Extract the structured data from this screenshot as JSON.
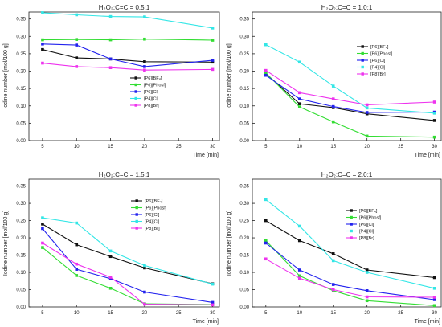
{
  "chart_data": [
    {
      "type": "line",
      "title": "H₂O₂:C=C = 0.5:1",
      "xlabel": "Time [min]",
      "ylabel": "Iodine number [mol/100 g]",
      "x": [
        5,
        10,
        15,
        20,
        30
      ],
      "xlim": [
        3,
        31
      ],
      "ylim": [
        0,
        0.37
      ],
      "xticks": [
        5,
        10,
        15,
        20,
        25,
        30
      ],
      "yticks": [
        "0.00",
        "0.05",
        "0.10",
        "0.15",
        "0.20",
        "0.25",
        "0.30",
        "0.35"
      ],
      "legend_position": "center-right",
      "series": [
        {
          "name": "[P6][BF₄]",
          "color": "#111111",
          "marker": "square",
          "values": [
            0.262,
            0.238,
            0.235,
            0.227,
            0.226
          ]
        },
        {
          "name": "[P6][Phosf]",
          "color": "#33dd33",
          "marker": "square",
          "values": [
            0.29,
            0.291,
            0.29,
            0.292,
            0.289
          ]
        },
        {
          "name": "[P6][Cl]",
          "color": "#2222ee",
          "marker": "square",
          "values": [
            0.278,
            0.275,
            0.235,
            0.213,
            0.231
          ]
        },
        {
          "name": "[P4][Cl]",
          "color": "#33e6e6",
          "marker": "square",
          "values": [
            0.368,
            0.362,
            0.357,
            0.356,
            0.324
          ]
        },
        {
          "name": "[P8][Br]",
          "color": "#ee33ee",
          "marker": "square",
          "values": [
            0.223,
            0.213,
            0.21,
            0.203,
            0.205
          ]
        }
      ]
    },
    {
      "type": "line",
      "title": "H₂O₂:C=C = 1.0:1",
      "xlabel": "Time [min]",
      "ylabel": "Iodine number [mol/100 g]",
      "x": [
        5,
        10,
        15,
        20,
        30
      ],
      "xlim": [
        3,
        31
      ],
      "ylim": [
        0,
        0.37
      ],
      "xticks": [
        5,
        10,
        15,
        20,
        25,
        30
      ],
      "yticks": [
        "0.00",
        "0.05",
        "0.10",
        "0.15",
        "0.20",
        "0.25",
        "0.30",
        "0.35"
      ],
      "legend_position": "top-right",
      "series": [
        {
          "name": "[P6][BF₄]",
          "color": "#111111",
          "marker": "square",
          "values": [
            0.193,
            0.106,
            0.095,
            0.077,
            0.058
          ]
        },
        {
          "name": "[P6][Phosf]",
          "color": "#33dd33",
          "marker": "square",
          "values": [
            0.195,
            0.097,
            0.054,
            0.013,
            0.01
          ]
        },
        {
          "name": "[P6][Cl]",
          "color": "#2222ee",
          "marker": "square",
          "values": [
            0.188,
            0.12,
            0.098,
            0.081,
            0.082
          ]
        },
        {
          "name": "[P4][Cl]",
          "color": "#33e6e6",
          "marker": "square",
          "values": [
            0.276,
            0.226,
            0.157,
            0.094,
            0.079
          ]
        },
        {
          "name": "[P8][Br]",
          "color": "#ee33ee",
          "marker": "square",
          "values": [
            0.202,
            0.138,
            0.12,
            0.103,
            0.111
          ]
        }
      ]
    },
    {
      "type": "line",
      "title": "H₂O₂:C=C = 1.5:1",
      "xlabel": "Time [min]",
      "ylabel": "Iodine number [mol/100 g]",
      "x": [
        5,
        10,
        15,
        20,
        30
      ],
      "xlim": [
        3,
        31
      ],
      "ylim": [
        0,
        0.37
      ],
      "xticks": [
        5,
        10,
        15,
        20,
        25,
        30
      ],
      "yticks": [
        "0.00",
        "0.05",
        "0.10",
        "0.15",
        "0.20",
        "0.25",
        "0.30",
        "0.35"
      ],
      "legend_position": "top-right",
      "series": [
        {
          "name": "[P6][BF₄]",
          "color": "#111111",
          "marker": "square",
          "values": [
            0.24,
            0.18,
            0.146,
            0.113,
            0.067
          ]
        },
        {
          "name": "[P6][Phosf]",
          "color": "#33dd33",
          "marker": "square",
          "values": [
            0.172,
            0.091,
            0.054,
            0.009,
            0.007
          ]
        },
        {
          "name": "[P6][Cl]",
          "color": "#2222ee",
          "marker": "square",
          "values": [
            0.227,
            0.109,
            0.082,
            0.043,
            0.013
          ]
        },
        {
          "name": "[P4][Cl]",
          "color": "#33e6e6",
          "marker": "square",
          "values": [
            0.258,
            0.243,
            0.162,
            0.12,
            0.066
          ]
        },
        {
          "name": "[P8][Br]",
          "color": "#ee33ee",
          "marker": "square",
          "values": [
            0.185,
            0.124,
            0.086,
            0.008,
            0.006
          ]
        }
      ]
    },
    {
      "type": "line",
      "title": "H₂O₂:C=C = 2.0:1",
      "xlabel": "Time [min]",
      "ylabel": "Iodine number [mol/100 g]",
      "x": [
        5,
        10,
        15,
        20,
        30
      ],
      "xlim": [
        3,
        31
      ],
      "ylim": [
        0,
        0.37
      ],
      "xticks": [
        5,
        10,
        15,
        20,
        25,
        30
      ],
      "yticks": [
        "0.00",
        "0.05",
        "0.10",
        "0.15",
        "0.20",
        "0.25",
        "0.30",
        "0.35"
      ],
      "legend_position": "top-right",
      "series": [
        {
          "name": "[P6][BF₄]",
          "color": "#111111",
          "marker": "square",
          "values": [
            0.25,
            0.192,
            0.154,
            0.107,
            0.085
          ]
        },
        {
          "name": "[P6][Phosf]",
          "color": "#33dd33",
          "marker": "square",
          "values": [
            0.192,
            0.09,
            0.047,
            0.018,
            0.004
          ]
        },
        {
          "name": "[P6][Cl]",
          "color": "#2222ee",
          "marker": "square",
          "values": [
            0.185,
            0.107,
            0.065,
            0.047,
            0.021
          ]
        },
        {
          "name": "[P4][Cl]",
          "color": "#33e6e6",
          "marker": "square",
          "values": [
            0.311,
            0.234,
            0.134,
            0.1,
            0.054
          ]
        },
        {
          "name": "[P8][Br]",
          "color": "#ee33ee",
          "marker": "square",
          "values": [
            0.139,
            0.083,
            0.05,
            0.029,
            0.028
          ]
        }
      ]
    }
  ]
}
